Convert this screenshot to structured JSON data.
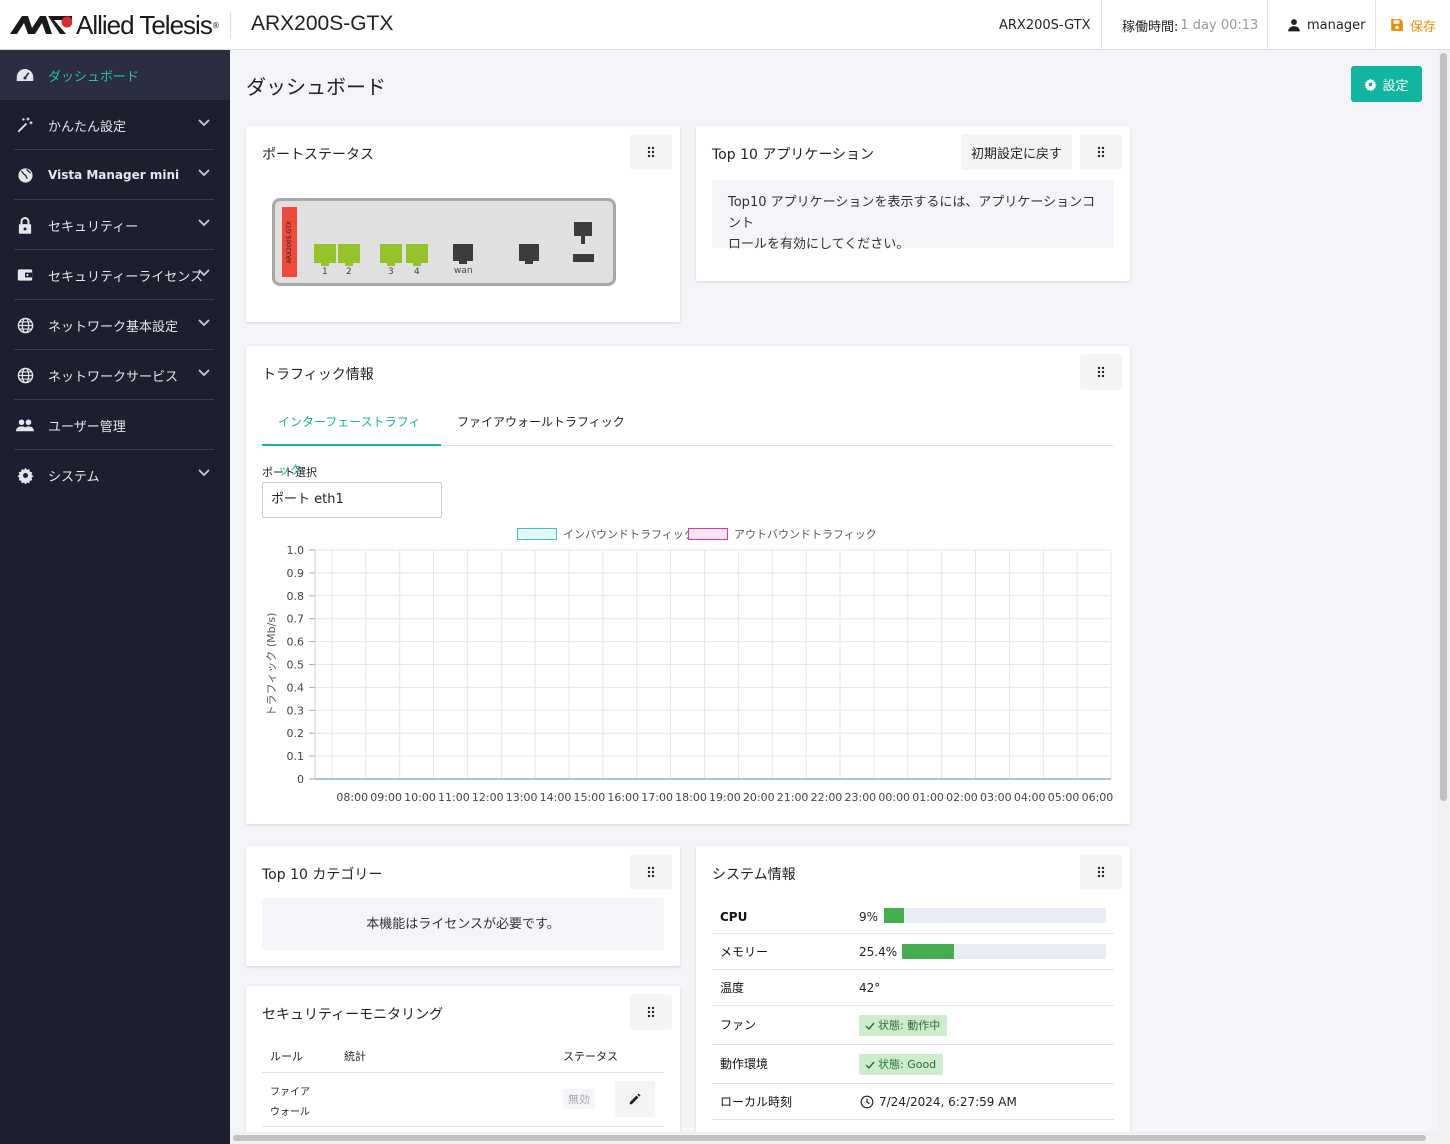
{
  "header": {
    "brand": "Allied Telesis",
    "device_title": "ARX200S-GTX",
    "hostname": "ARX200S-GTX",
    "uptime_label": "稼働時間:",
    "uptime_value": "1 day 00:13",
    "user": "manager",
    "save_label": "保存"
  },
  "sidebar": {
    "items": [
      {
        "label": "ダッシュボード",
        "icon": "gauge-icon"
      },
      {
        "label": "かんたん設定",
        "icon": "wand-icon"
      },
      {
        "label": "Vista Manager mini",
        "icon": "globe-icon"
      },
      {
        "label": "セキュリティー",
        "icon": "lock-icon"
      },
      {
        "label": "セキュリティーライセンス",
        "icon": "license-icon"
      },
      {
        "label": "ネットワーク基本設定",
        "icon": "globe-icon"
      },
      {
        "label": "ネットワークサービス",
        "icon": "globe-icon"
      },
      {
        "label": "ユーザー管理",
        "icon": "users-icon"
      },
      {
        "label": "システム",
        "icon": "gear-icon"
      }
    ]
  },
  "page": {
    "title": "ダッシュボード",
    "settings_label": "設定"
  },
  "port_status": {
    "title": "ポートステータス",
    "device_label": "ARX200S-GTX",
    "ports": [
      "1",
      "2",
      "3",
      "4",
      "wan"
    ]
  },
  "top10_apps": {
    "title": "Top 10 アプリケーション",
    "reset_label": "初期設定に戻す",
    "message_line1": "Top10 アプリケーションを表示するには、アプリケーションコント",
    "message_line2": "ロールを有効にしてください。"
  },
  "traffic": {
    "title": "トラフィック情報",
    "tabs": [
      "インターフェーストラフィック",
      "ファイアウォールトラフィック"
    ],
    "port_select_label": "ポート選択",
    "port_select_value": "ポート eth1",
    "colors": {
      "inbound_fill": "#e0f7f6",
      "inbound_border": "#3cc6bd",
      "outbound_fill": "#fbe3f4",
      "outbound_border": "#d63aa8"
    }
  },
  "chart_data": {
    "type": "line",
    "ylabel": "トラフィック (Mb/s)",
    "ylim": [
      0,
      1.0
    ],
    "yticks": [
      "1.0",
      "0.9",
      "0.8",
      "0.7",
      "0.6",
      "0.5",
      "0.4",
      "0.3",
      "0.2",
      "0.1",
      "0"
    ],
    "categories": [
      "08:00",
      "09:00",
      "10:00",
      "11:00",
      "12:00",
      "13:00",
      "14:00",
      "15:00",
      "16:00",
      "17:00",
      "18:00",
      "19:00",
      "20:00",
      "21:00",
      "22:00",
      "23:00",
      "00:00",
      "01:00",
      "02:00",
      "03:00",
      "04:00",
      "05:00",
      "06:00"
    ],
    "series": [
      {
        "name": "インバウンドトラフィック",
        "values": [
          0,
          0,
          0,
          0,
          0,
          0,
          0,
          0,
          0,
          0,
          0,
          0,
          0,
          0,
          0,
          0,
          0,
          0,
          0,
          0,
          0,
          0,
          0
        ]
      },
      {
        "name": "アウトバウンドトラフィック",
        "values": [
          0,
          0,
          0,
          0,
          0,
          0,
          0,
          0,
          0,
          0,
          0,
          0,
          0,
          0,
          0,
          0,
          0,
          0,
          0,
          0,
          0,
          0,
          0
        ]
      }
    ],
    "grid": true,
    "legend": "top-center"
  },
  "top10_categories": {
    "title": "Top 10 カテゴリー",
    "message": "本機能はライセンスが必要です。"
  },
  "system_info": {
    "title": "システム情報",
    "cpu_label": "CPU",
    "cpu_value": "9%",
    "cpu_fraction": 0.09,
    "memory_label": "メモリー",
    "memory_value": "25.4%",
    "memory_fraction": 0.254,
    "temp_label": "温度",
    "temp_value": "42°",
    "fan_label": "ファン",
    "fan_value": "状態: 動作中",
    "env_label": "動作環境",
    "env_value": "状態: Good",
    "time_label": "ローカル時刻",
    "time_value": "7/24/2024, 6:27:59 AM"
  },
  "security_monitoring": {
    "title": "セキュリティーモニタリング",
    "columns": [
      "ルール",
      "統計",
      "ステータス"
    ],
    "rows": [
      {
        "rule_line1": "ファイア",
        "rule_line2": "ウォール",
        "status": "無効"
      }
    ]
  }
}
